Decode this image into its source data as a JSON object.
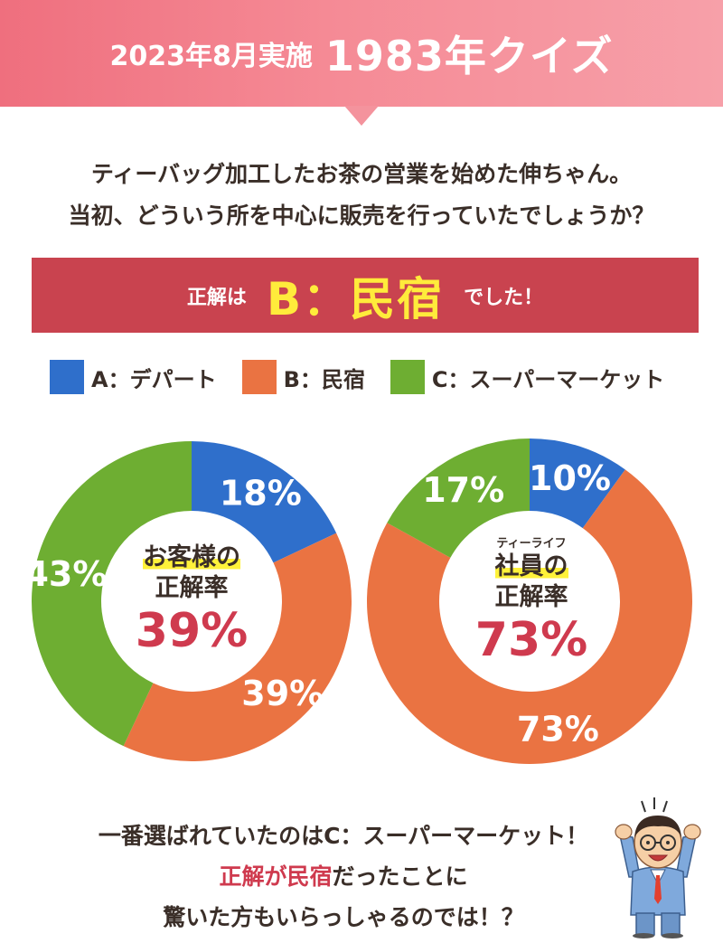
{
  "header": {
    "date_label": "2023年8月実施",
    "quiz_title": "1983年クイズ"
  },
  "question": {
    "line1": "ティーバッグ加工したお茶の営業を始めた伸ちゃん。",
    "line2": "当初、どういう所を中心に販売を行っていたでしょうか？"
  },
  "answer": {
    "prefix": "正解は",
    "value": "B：民宿",
    "suffix": "でした！"
  },
  "colors": {
    "A": "#2f6fcb",
    "B": "#ea7342",
    "C": "#6eae32",
    "accent": "#c9434f",
    "highlight": "#fff23a"
  },
  "chart_data": [
    {
      "type": "pie",
      "variant": "donut",
      "title": "お客様の正解率",
      "center": {
        "label_line1": "お客様の",
        "label_line2": "正解率",
        "value": "39%"
      },
      "categories": [
        "A：デパート",
        "B：民宿",
        "C：スーパーマーケット"
      ],
      "values": [
        18,
        39,
        43
      ],
      "labels": [
        "18%",
        "39%",
        "43%"
      ],
      "legend": "top-left"
    },
    {
      "type": "pie",
      "variant": "donut",
      "title": "ティーライフ社員の正解率",
      "center": {
        "label_small": "ティーライフ",
        "label_line1": "社員の",
        "label_line2": "正解率",
        "value": "73%"
      },
      "categories": [
        "A：デパート",
        "B：民宿",
        "C：スーパーマーケット"
      ],
      "values": [
        10,
        73,
        17
      ],
      "labels": [
        "10%",
        "73%",
        "17%"
      ],
      "legend": "top-left"
    }
  ],
  "legend": {
    "items": [
      {
        "label": "A：デパート"
      },
      {
        "label": "B：民宿"
      },
      {
        "label": "C：スーパーマーケット"
      }
    ]
  },
  "footer": {
    "line1": "一番選ばれていたのはC：スーパーマーケット！",
    "line2_red": "正解が民宿",
    "line2_rest": "だったことに",
    "line3": "驚いた方もいらっしゃるのでは！？"
  }
}
